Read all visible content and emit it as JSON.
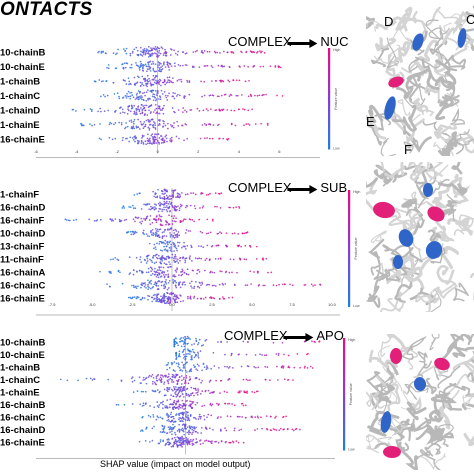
{
  "figure": {
    "title": "ONTACTS",
    "shared_xlabel": "SHAP value (impact on model output)"
  },
  "colors": {
    "high": "#ee0a7d",
    "mid": "#8a3bd6",
    "low": "#1f7fe0",
    "structure_blue": "#2f64c8",
    "structure_pink": "#e2207a"
  },
  "chart_data": [
    {
      "type": "scatter",
      "subtype": "shap_beeswarm",
      "title": "COMPLEX ⟶ NUC",
      "comparison": {
        "from": "COMPLEX",
        "to": "NUC"
      },
      "colorbar": {
        "high": "High",
        "low": "Low",
        "label": "Feature value"
      },
      "xlim": [
        -6,
        8
      ],
      "x_ticks": [
        "-6",
        "-4",
        "-2",
        "0",
        "2",
        "4",
        "6"
      ],
      "features": [
        {
          "label": "10-chainB",
          "min": -3.2,
          "max": 5.4,
          "density": 1.0
        },
        {
          "label": "10-chainE",
          "min": -2.6,
          "max": 6.3,
          "density": 0.9
        },
        {
          "label": "1-chainB",
          "min": -3.3,
          "max": 4.6,
          "density": 0.85
        },
        {
          "label": "1-chainC",
          "min": -3.0,
          "max": 6.6,
          "density": 0.85
        },
        {
          "label": "1-chainD",
          "min": -4.3,
          "max": 4.9,
          "density": 0.9
        },
        {
          "label": "1-chainE",
          "min": -3.9,
          "max": 5.8,
          "density": 0.8
        },
        {
          "label": "16-chainE",
          "min": -3.1,
          "max": 3.8,
          "density": 0.75
        }
      ]
    },
    {
      "type": "scatter",
      "subtype": "shap_beeswarm",
      "title": "COMPLEX ⟶ SUB",
      "comparison": {
        "from": "COMPLEX",
        "to": "SUB"
      },
      "colorbar": {
        "high": "High",
        "low": "Low",
        "label": "Feature value"
      },
      "xlim": [
        -8.5,
        10.5
      ],
      "x_ticks": [
        "-7.5",
        "-5.0",
        "-2.5",
        "0.0",
        "2.5",
        "5.0",
        "7.5",
        "10.0"
      ],
      "features": [
        {
          "label": "1-chainF",
          "min": -2.5,
          "max": 3.2,
          "density": 0.6
        },
        {
          "label": "16-chainD",
          "min": -3.3,
          "max": 4.3,
          "density": 0.7
        },
        {
          "label": "16-chainF",
          "min": -6.8,
          "max": 2.6,
          "density": 0.65
        },
        {
          "label": "10-chainD",
          "min": -3.1,
          "max": 4.8,
          "density": 0.7
        },
        {
          "label": "13-chainF",
          "min": -1.6,
          "max": 5.3,
          "density": 0.55
        },
        {
          "label": "11-chainF",
          "min": -3.9,
          "max": 6.3,
          "density": 0.8
        },
        {
          "label": "16-chainA",
          "min": -4.6,
          "max": 6.3,
          "density": 0.8
        },
        {
          "label": "16-chainC",
          "min": -4.1,
          "max": 9.3,
          "density": 0.9
        },
        {
          "label": "16-chainE",
          "min": -2.9,
          "max": 3.8,
          "density": 1.0
        }
      ]
    },
    {
      "type": "scatter",
      "subtype": "shap_beeswarm",
      "title": "COMPLEX ⟶ APO",
      "comparison": {
        "from": "COMPLEX",
        "to": "APO"
      },
      "colorbar": {
        "high": "High",
        "low": "Low",
        "label": "Feature value"
      },
      "xlim": [
        -8,
        8
      ],
      "x_ticks": [],
      "features": [
        {
          "label": "10-chainB",
          "min": -0.6,
          "max": 7.2,
          "density": 0.5
        },
        {
          "label": "10-chainE",
          "min": -0.5,
          "max": 6.6,
          "density": 0.5
        },
        {
          "label": "1-chainB",
          "min": -1.1,
          "max": 7.1,
          "density": 0.55
        },
        {
          "label": "1-chainC",
          "min": -6.8,
          "max": 6.0,
          "density": 0.9
        },
        {
          "label": "1-chainE",
          "min": -2.8,
          "max": 3.9,
          "density": 0.8
        },
        {
          "label": "16-chainB",
          "min": -3.8,
          "max": 3.6,
          "density": 0.75
        },
        {
          "label": "16-chainC",
          "min": -2.5,
          "max": 5.4,
          "density": 0.8
        },
        {
          "label": "16-chainD",
          "min": -2.4,
          "max": 6.2,
          "density": 0.85
        },
        {
          "label": "16-chainE",
          "min": -2.5,
          "max": 3.2,
          "density": 0.9
        }
      ]
    }
  ],
  "structures": [
    {
      "chain_labels": [
        "D",
        "C",
        "E",
        "F"
      ]
    },
    {
      "chain_labels": []
    },
    {
      "chain_labels": []
    }
  ]
}
